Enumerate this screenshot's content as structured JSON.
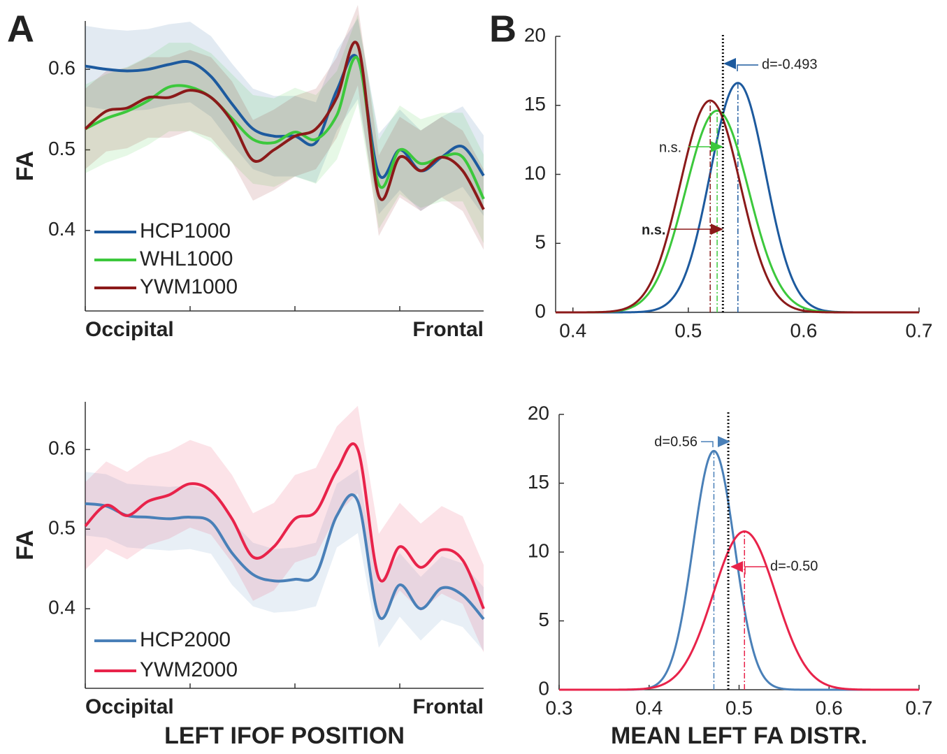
{
  "chart_data": [
    {
      "type": "line",
      "panel_label": "A",
      "ylabel": "FA",
      "x_start_label": "Occipital",
      "x_end_label": "Frontal",
      "x": [
        0,
        5,
        10,
        15,
        20,
        25,
        30,
        35,
        40,
        45,
        50,
        55,
        60,
        65,
        70,
        75,
        80,
        85,
        90,
        95
      ],
      "xlim": [
        0,
        95
      ],
      "xticks": [
        0,
        25,
        50,
        75
      ],
      "xtick_labels": false,
      "ylim": [
        0.3,
        0.66
      ],
      "yticks": [
        0.4,
        0.5,
        0.6
      ],
      "legend": "lower left",
      "series": [
        {
          "name": "HCP1000",
          "color": "#1d5a9e",
          "sd": 0.05,
          "values": [
            0.604,
            0.6,
            0.598,
            0.6,
            0.606,
            0.609,
            0.591,
            0.557,
            0.526,
            0.517,
            0.517,
            0.509,
            0.574,
            0.613,
            0.47,
            0.5,
            0.474,
            0.491,
            0.504,
            0.468
          ]
        },
        {
          "name": "WHL1000",
          "color": "#3cc83c",
          "sd": 0.055,
          "values": [
            0.526,
            0.539,
            0.548,
            0.561,
            0.578,
            0.578,
            0.565,
            0.539,
            0.513,
            0.509,
            0.522,
            0.513,
            0.543,
            0.613,
            0.457,
            0.5,
            0.483,
            0.491,
            0.491,
            0.439
          ]
        },
        {
          "name": "YWM1000",
          "color": "#8b1a1a",
          "sd": 0.05,
          "values": [
            0.526,
            0.548,
            0.552,
            0.565,
            0.565,
            0.574,
            0.565,
            0.535,
            0.487,
            0.5,
            0.517,
            0.526,
            0.565,
            0.63,
            0.443,
            0.491,
            0.474,
            0.491,
            0.474,
            0.426
          ]
        }
      ]
    },
    {
      "type": "density",
      "panel_label": "B",
      "xlim": [
        0.385,
        0.7
      ],
      "xticks": [
        0.4,
        0.5,
        0.6,
        0.7
      ],
      "xtick_labels": true,
      "ylim": [
        0,
        20
      ],
      "yticks": [
        0,
        5,
        10,
        15,
        20
      ],
      "reference": 0.53,
      "series": [
        {
          "name": "HCP1000",
          "color": "#1d5a9e",
          "mean": 0.543,
          "sd": 0.024
        },
        {
          "name": "WHL1000",
          "color": "#3cc83c",
          "mean": 0.525,
          "sd": 0.0273
        },
        {
          "name": "YWM1000",
          "color": "#8b1a1a",
          "mean": 0.519,
          "sd": 0.026
        }
      ],
      "annotations": [
        {
          "text": "d=-0.493",
          "color": "#1d5a9e"
        },
        {
          "text": "n.s.",
          "color": "#3cc83c"
        },
        {
          "text": "n.s.",
          "color": "#8b1a1a"
        }
      ]
    },
    {
      "type": "line",
      "ylabel": "FA",
      "x_start_label": "Occipital",
      "x_end_label": "Frontal",
      "xlabel": "LEFT IFOF POSITION",
      "x": [
        0,
        5,
        10,
        15,
        20,
        25,
        30,
        35,
        40,
        45,
        50,
        55,
        60,
        65,
        70,
        75,
        80,
        85,
        90,
        95
      ],
      "xlim": [
        0,
        95
      ],
      "xticks": [
        0,
        25,
        50,
        75
      ],
      "xtick_labels": false,
      "ylim": [
        0.3,
        0.66
      ],
      "yticks": [
        0.4,
        0.5,
        0.6
      ],
      "legend": "lower left",
      "series": [
        {
          "name": "HCP2000",
          "color": "#4a80b8",
          "sd": 0.04,
          "values": [
            0.532,
            0.529,
            0.517,
            0.515,
            0.513,
            0.515,
            0.509,
            0.47,
            0.443,
            0.435,
            0.437,
            0.443,
            0.517,
            0.535,
            0.391,
            0.43,
            0.4,
            0.426,
            0.417,
            0.387
          ]
        },
        {
          "name": "YWM2000",
          "color": "#e8234a",
          "sd": 0.055,
          "values": [
            0.504,
            0.53,
            0.517,
            0.535,
            0.543,
            0.557,
            0.548,
            0.513,
            0.465,
            0.478,
            0.513,
            0.522,
            0.574,
            0.6,
            0.439,
            0.478,
            0.452,
            0.474,
            0.461,
            0.4
          ]
        }
      ]
    },
    {
      "type": "density",
      "xlabel": "MEAN LEFT FA DISTR.",
      "xlim": [
        0.3,
        0.7
      ],
      "xticks": [
        0.3,
        0.4,
        0.5,
        0.6,
        0.7
      ],
      "xtick_labels": true,
      "ylim": [
        0,
        20
      ],
      "yticks": [
        0,
        5,
        10,
        15,
        20
      ],
      "reference": 0.488,
      "series": [
        {
          "name": "HCP2000",
          "color": "#4a80b8",
          "mean": 0.472,
          "sd": 0.023
        },
        {
          "name": "YWM2000",
          "color": "#e8234a",
          "mean": 0.506,
          "sd": 0.0347
        }
      ],
      "annotations": [
        {
          "text": "d=0.56",
          "color": "#4a80b8"
        },
        {
          "text": "d=-0.50",
          "color": "#e8234a"
        }
      ]
    }
  ]
}
